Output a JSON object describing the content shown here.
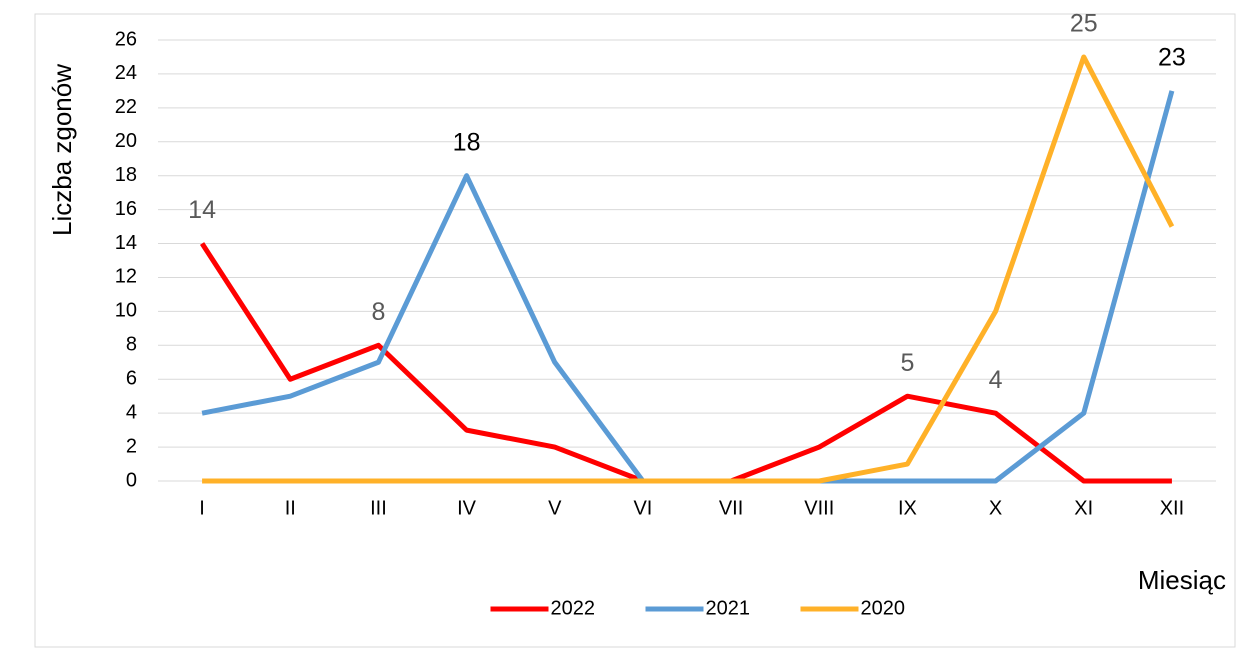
{
  "chart_data": {
    "type": "line",
    "y_label": "Liczba zgonów",
    "x_label": "Miesiąc",
    "categories": [
      "I",
      "II",
      "III",
      "IV",
      "V",
      "VI",
      "VII",
      "VIII",
      "IX",
      "X",
      "XI",
      "XII"
    ],
    "series": [
      {
        "name": "2022",
        "color": "#ff0000",
        "label_color": "#595959",
        "values": [
          14,
          6,
          8,
          3,
          2,
          0,
          0,
          2,
          5,
          4,
          0,
          0
        ],
        "value_labels": [
          "14",
          null,
          "8",
          null,
          null,
          null,
          null,
          null,
          "5",
          "4",
          null,
          null
        ]
      },
      {
        "name": "2021",
        "color": "#5b9bd5",
        "label_color": "#000000",
        "values": [
          4,
          5,
          7,
          18,
          7,
          0,
          0,
          0,
          0,
          0,
          4,
          23
        ],
        "value_labels": [
          null,
          null,
          null,
          "18",
          null,
          null,
          null,
          null,
          null,
          null,
          null,
          "23"
        ]
      },
      {
        "name": "2020",
        "color": "#ffb128",
        "label_color": "#595959",
        "values": [
          0,
          0,
          0,
          0,
          0,
          0,
          0,
          0,
          1,
          10,
          25,
          15
        ],
        "value_labels": [
          null,
          null,
          null,
          null,
          null,
          null,
          null,
          null,
          null,
          null,
          "25",
          null
        ]
      }
    ],
    "ylim": [
      0,
      26
    ],
    "yticks": [
      0,
      2,
      4,
      6,
      8,
      10,
      12,
      14,
      16,
      18,
      20,
      22,
      24,
      26
    ],
    "grid": true,
    "legend": "bottom"
  }
}
